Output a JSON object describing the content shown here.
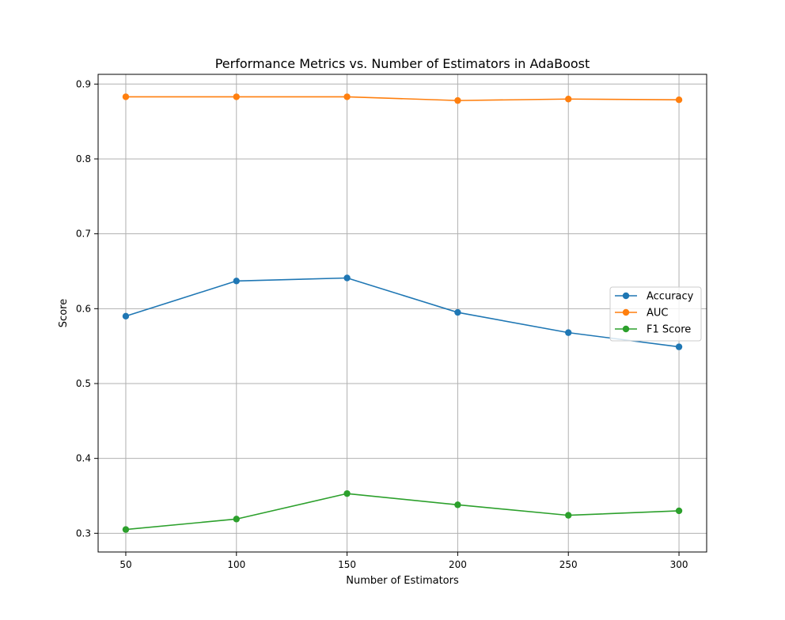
{
  "chart_data": {
    "type": "line",
    "title": "Performance Metrics vs. Number of Estimators in AdaBoost",
    "xlabel": "Number of Estimators",
    "ylabel": "Score",
    "x": [
      50,
      100,
      150,
      200,
      250,
      300
    ],
    "xticks": [
      "50",
      "100",
      "150",
      "200",
      "250",
      "300"
    ],
    "yticks": [
      0.3,
      0.4,
      0.5,
      0.6,
      0.7,
      0.8,
      0.9
    ],
    "ytick_labels": [
      "0.3",
      "0.4",
      "0.5",
      "0.6",
      "0.7",
      "0.8",
      "0.9"
    ],
    "xlim": [
      37.5,
      312.5
    ],
    "ylim": [
      0.275,
      0.913
    ],
    "grid": true,
    "legend_position": "center-right",
    "series": [
      {
        "name": "Accuracy",
        "color": "#1f77b4",
        "marker": "circle",
        "values": [
          0.59,
          0.637,
          0.641,
          0.595,
          0.568,
          0.549
        ]
      },
      {
        "name": "AUC",
        "color": "#ff7f0e",
        "marker": "circle",
        "values": [
          0.883,
          0.883,
          0.883,
          0.878,
          0.88,
          0.879
        ]
      },
      {
        "name": "F1 Score",
        "color": "#2ca02c",
        "marker": "circle",
        "values": [
          0.305,
          0.319,
          0.353,
          0.338,
          0.324,
          0.33
        ]
      }
    ]
  }
}
